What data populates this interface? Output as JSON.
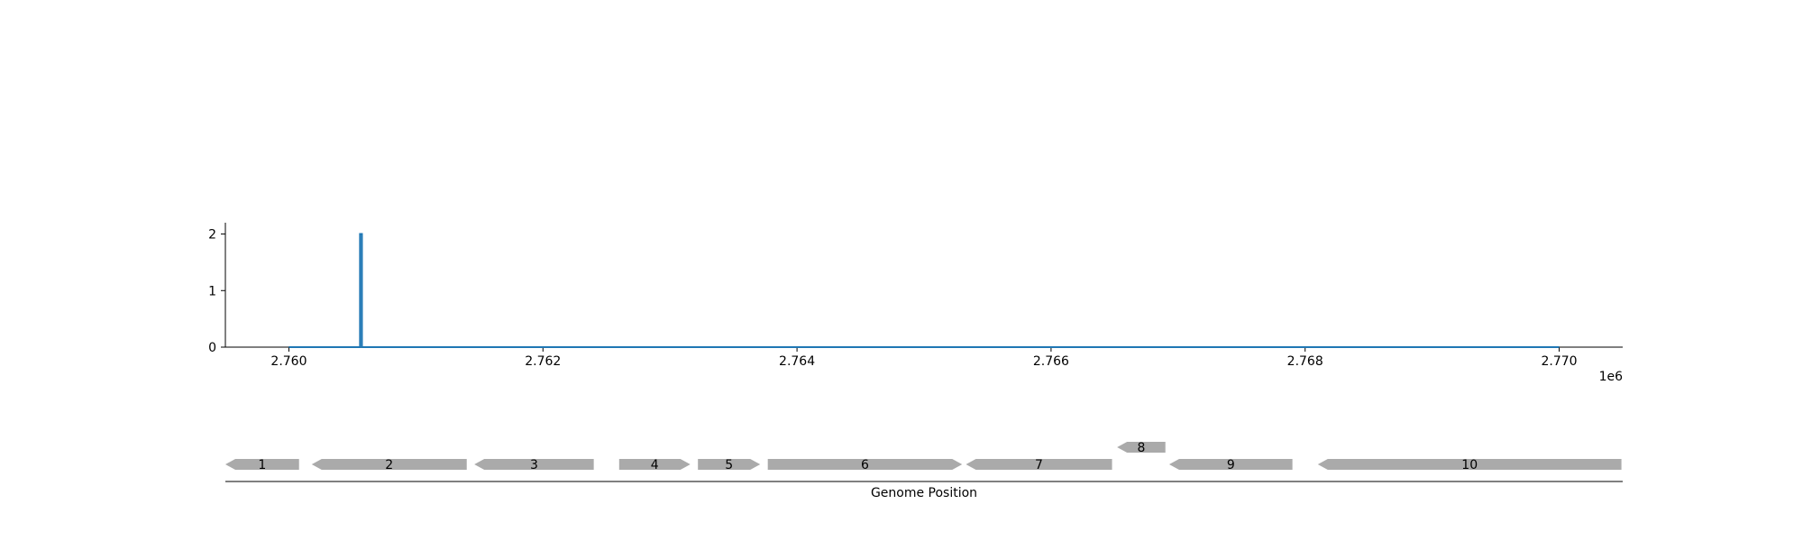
{
  "chart_data": [
    {
      "type": "line",
      "title": "",
      "xlabel": "",
      "ylabel": "",
      "xlim": [
        2759500,
        2770500
      ],
      "ylim": [
        0,
        2.2
      ],
      "x_offset_label": "1e6",
      "x_ticks": [
        2760000,
        2762000,
        2764000,
        2766000,
        2768000,
        2770000
      ],
      "x_tick_labels": [
        "2.760",
        "2.762",
        "2.764",
        "2.766",
        "2.768",
        "2.770"
      ],
      "y_ticks": [
        0,
        1,
        2
      ],
      "y_tick_labels": [
        "0",
        "1",
        "2"
      ],
      "grid": false,
      "series": [
        {
          "color": "#1f77b4",
          "x": [
            2760000,
            2760560,
            2760560,
            2760575,
            2760575,
            2770000
          ],
          "y": [
            0,
            0,
            2,
            2,
            0,
            0
          ]
        }
      ]
    },
    {
      "type": "gene_map",
      "xlabel": "Genome Position",
      "xlim": [
        2759500,
        2770500
      ],
      "feature_color": "#aaaaaa",
      "features": [
        {
          "label": "1",
          "start": 2759500,
          "end": 2760080,
          "strand": "-",
          "row": 0
        },
        {
          "label": "2",
          "start": 2760180,
          "end": 2761400,
          "strand": "-",
          "row": 0
        },
        {
          "label": "3",
          "start": 2761460,
          "end": 2762400,
          "strand": "-",
          "row": 0
        },
        {
          "label": "4",
          "start": 2762600,
          "end": 2763160,
          "strand": "+",
          "row": 0
        },
        {
          "label": "5",
          "start": 2763220,
          "end": 2763710,
          "strand": "+",
          "row": 0
        },
        {
          "label": "6",
          "start": 2763770,
          "end": 2765300,
          "strand": "+",
          "row": 0
        },
        {
          "label": "7",
          "start": 2765330,
          "end": 2766480,
          "strand": "-",
          "row": 0
        },
        {
          "label": "8",
          "start": 2766520,
          "end": 2766900,
          "strand": "-",
          "row": 1
        },
        {
          "label": "9",
          "start": 2766930,
          "end": 2767900,
          "strand": "-",
          "row": 0
        },
        {
          "label": "10",
          "start": 2768100,
          "end": 2770490,
          "strand": "-",
          "row": 0
        }
      ]
    }
  ]
}
